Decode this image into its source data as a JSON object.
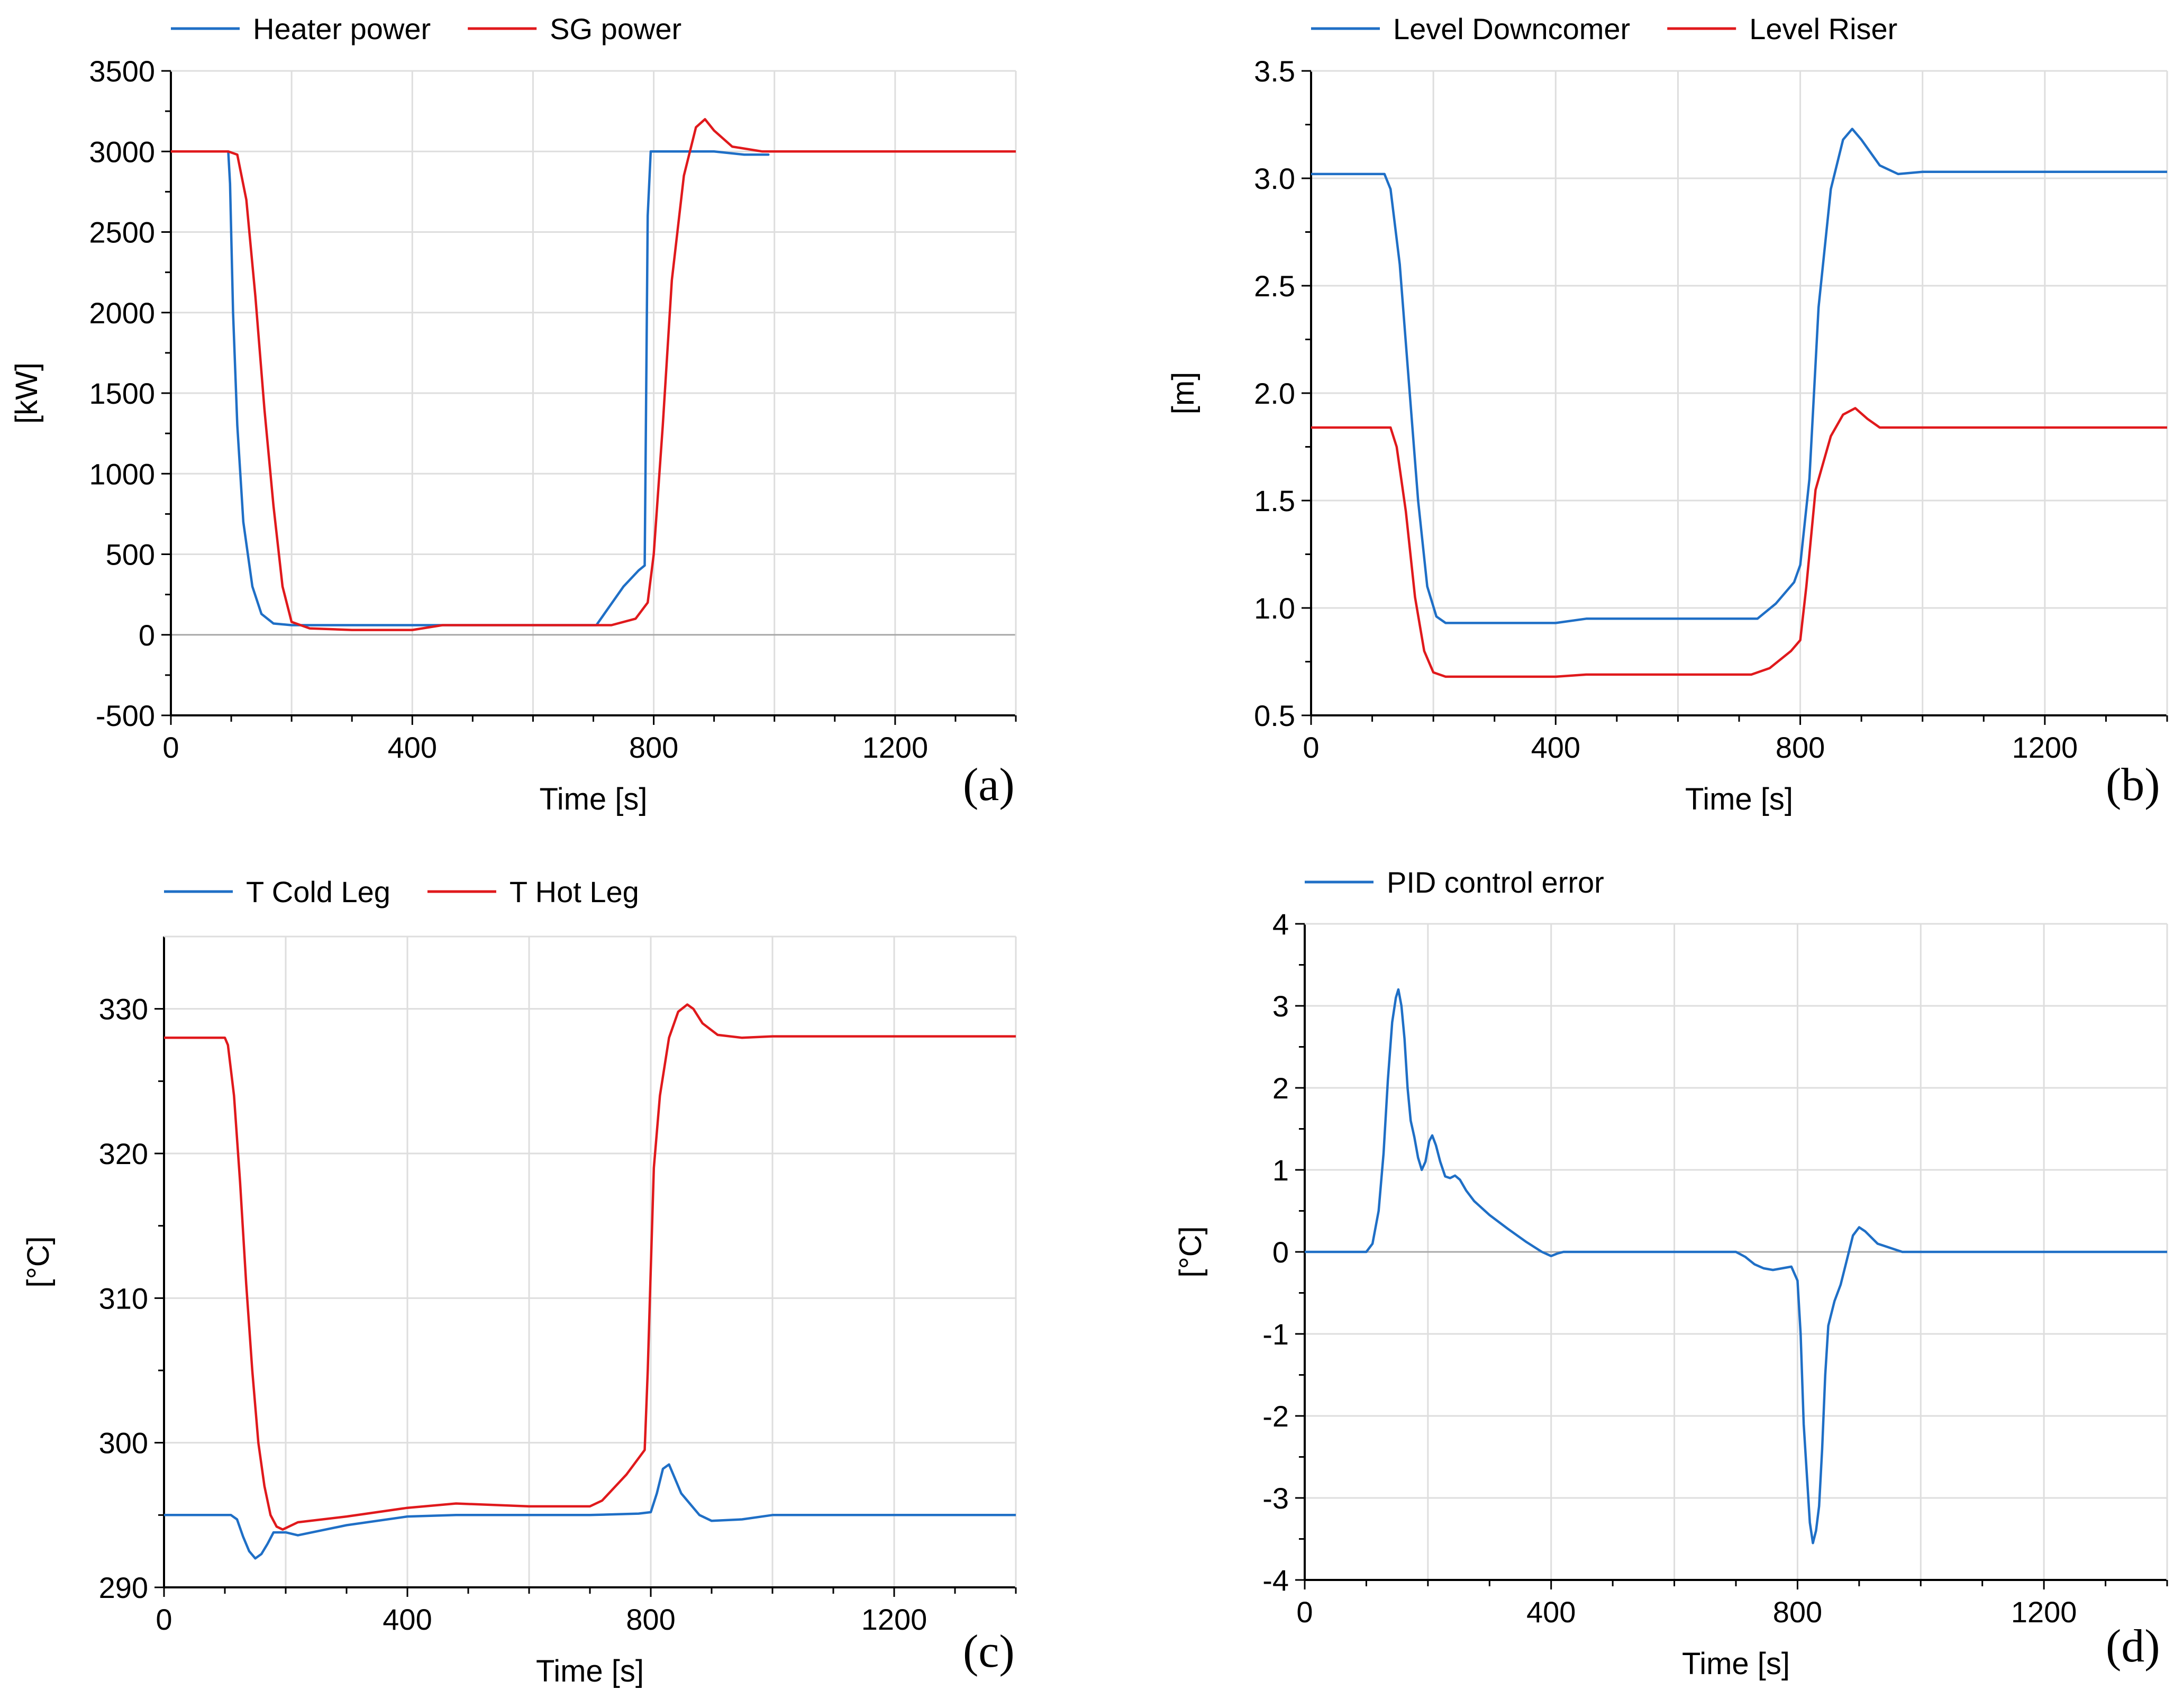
{
  "chart_data": [
    {
      "id": "a",
      "type": "line",
      "panel_label": "(a)",
      "xlabel": "Time [s]",
      "ylabel": "[kW]",
      "xlim": [
        0,
        1400
      ],
      "ylim": [
        -500,
        3500
      ],
      "xticks": [
        0,
        400,
        800,
        1200
      ],
      "xtick_labels": [
        "0",
        "400",
        "800",
        "1200"
      ],
      "yticks": [
        -500,
        0,
        500,
        1000,
        1500,
        2000,
        2500,
        3000,
        3500
      ],
      "ytick_labels": [
        "-500",
        "0",
        "500",
        "1000",
        "1500",
        "2000",
        "2500",
        "3000",
        "3500"
      ],
      "x_minor_step": 100,
      "grid": true,
      "legend": "top",
      "series": [
        {
          "name": "Heater power",
          "color": "#1f6fc6",
          "x": [
            0,
            95,
            98,
            103,
            110,
            120,
            135,
            150,
            170,
            200,
            250,
            320,
            400,
            450,
            460,
            600,
            700,
            705,
            720,
            750,
            775,
            785,
            790,
            795,
            900,
            950,
            990
          ],
          "y": [
            3000,
            3000,
            2800,
            2000,
            1300,
            700,
            300,
            130,
            70,
            60,
            60,
            60,
            60,
            60,
            60,
            60,
            60,
            60,
            140,
            300,
            400,
            430,
            2600,
            3000,
            3000,
            2980,
            2980
          ]
        },
        {
          "name": "SG power",
          "color": "#e0191c",
          "x": [
            0,
            95,
            110,
            125,
            140,
            155,
            170,
            185,
            200,
            230,
            300,
            400,
            450,
            700,
            730,
            770,
            790,
            800,
            815,
            830,
            850,
            870,
            885,
            900,
            930,
            980,
            1400
          ],
          "y": [
            3000,
            3000,
            2980,
            2700,
            2100,
            1400,
            800,
            300,
            80,
            40,
            30,
            30,
            60,
            60,
            60,
            100,
            200,
            500,
            1300,
            2200,
            2850,
            3150,
            3200,
            3130,
            3030,
            3000,
            3000
          ]
        }
      ]
    },
    {
      "id": "b",
      "type": "line",
      "panel_label": "(b)",
      "xlabel": "Time [s]",
      "ylabel": "[m]",
      "xlim": [
        0,
        1400
      ],
      "ylim": [
        0.5,
        3.5
      ],
      "xticks": [
        0,
        400,
        800,
        1200
      ],
      "xtick_labels": [
        "0",
        "400",
        "800",
        "1200"
      ],
      "yticks": [
        0.5,
        1.0,
        1.5,
        2.0,
        2.5,
        3.0,
        3.5
      ],
      "ytick_labels": [
        "0.5",
        "1.0",
        "1.5",
        "2.0",
        "2.5",
        "3.0",
        "3.5"
      ],
      "x_minor_step": 100,
      "grid": true,
      "legend": "top",
      "series": [
        {
          "name": "Level Downcomer",
          "color": "#1f6fc6",
          "x": [
            0,
            120,
            130,
            145,
            160,
            175,
            190,
            205,
            220,
            300,
            400,
            450,
            600,
            730,
            760,
            790,
            800,
            815,
            830,
            850,
            870,
            885,
            900,
            930,
            960,
            1000,
            1400
          ],
          "y": [
            3.02,
            3.02,
            2.95,
            2.6,
            2.05,
            1.5,
            1.1,
            0.96,
            0.93,
            0.93,
            0.93,
            0.95,
            0.95,
            0.95,
            1.02,
            1.12,
            1.2,
            1.6,
            2.4,
            2.95,
            3.18,
            3.23,
            3.18,
            3.06,
            3.02,
            3.03,
            3.03
          ]
        },
        {
          "name": "Level Riser",
          "color": "#e0191c",
          "x": [
            0,
            130,
            140,
            155,
            170,
            185,
            200,
            220,
            300,
            400,
            450,
            600,
            720,
            750,
            785,
            800,
            810,
            825,
            850,
            870,
            890,
            910,
            930,
            1000,
            1400
          ],
          "y": [
            1.84,
            1.84,
            1.75,
            1.45,
            1.05,
            0.8,
            0.7,
            0.68,
            0.68,
            0.68,
            0.69,
            0.69,
            0.69,
            0.72,
            0.8,
            0.85,
            1.1,
            1.55,
            1.8,
            1.9,
            1.93,
            1.88,
            1.84,
            1.84,
            1.84
          ]
        }
      ]
    },
    {
      "id": "c",
      "type": "line",
      "panel_label": "(c)",
      "xlabel": "Time [s]",
      "ylabel": "[°C]",
      "xlim": [
        0,
        1400
      ],
      "ylim": [
        290,
        335
      ],
      "xticks": [
        0,
        400,
        800,
        1200
      ],
      "xtick_labels": [
        "0",
        "400",
        "800",
        "1200"
      ],
      "yticks": [
        290,
        300,
        310,
        320,
        330
      ],
      "ytick_labels": [
        "290",
        "300",
        "310",
        "320",
        "330"
      ],
      "x_minor_step": 100,
      "grid": true,
      "legend": "top",
      "series": [
        {
          "name": "T Cold Leg",
          "color": "#1f6fc6",
          "x": [
            0,
            110,
            120,
            130,
            140,
            150,
            160,
            170,
            180,
            200,
            220,
            300,
            400,
            480,
            600,
            700,
            780,
            800,
            810,
            820,
            830,
            840,
            850,
            860,
            870,
            880,
            900,
            950,
            1000,
            1400
          ],
          "y": [
            295,
            295,
            294.7,
            293.5,
            292.5,
            292,
            292.3,
            293,
            293.8,
            293.8,
            293.6,
            294.3,
            294.9,
            295,
            295,
            295,
            295.1,
            295.2,
            296.5,
            298.2,
            298.5,
            297.5,
            296.5,
            296,
            295.5,
            295,
            294.6,
            294.7,
            295,
            295
          ]
        },
        {
          "name": "T Hot Leg",
          "color": "#e0191c",
          "x": [
            0,
            100,
            105,
            115,
            125,
            135,
            145,
            155,
            165,
            175,
            185,
            195,
            220,
            300,
            400,
            480,
            600,
            700,
            720,
            760,
            790,
            795,
            800,
            805,
            815,
            830,
            845,
            860,
            870,
            885,
            910,
            950,
            1000,
            1400
          ],
          "y": [
            328,
            328,
            327.5,
            324,
            318,
            311,
            305,
            300,
            297,
            295,
            294.2,
            294,
            294.5,
            294.9,
            295.5,
            295.8,
            295.6,
            295.6,
            296,
            297.8,
            299.5,
            305,
            312,
            319,
            324,
            328,
            329.8,
            330.3,
            330,
            329,
            328.2,
            328,
            328.1,
            328.1
          ]
        }
      ]
    },
    {
      "id": "d",
      "type": "line",
      "panel_label": "(d)",
      "xlabel": "Time [s]",
      "ylabel": "[°C]",
      "xlim": [
        0,
        1400
      ],
      "ylim": [
        -4,
        4
      ],
      "xticks": [
        0,
        400,
        800,
        1200
      ],
      "xtick_labels": [
        "0",
        "400",
        "800",
        "1200"
      ],
      "yticks": [
        -4,
        -3,
        -2,
        -1,
        0,
        1,
        2,
        3,
        4
      ],
      "ytick_labels": [
        "-4",
        "-3",
        "-2",
        "-1",
        "0",
        "1",
        "2",
        "3",
        "4"
      ],
      "x_minor_step": 100,
      "grid": true,
      "legend": "top",
      "series": [
        {
          "name": "PID control error",
          "color": "#1f6fc6",
          "x": [
            0,
            100,
            110,
            120,
            128,
            135,
            142,
            148,
            152,
            157,
            162,
            167,
            172,
            178,
            184,
            190,
            196,
            202,
            207,
            213,
            220,
            228,
            236,
            244,
            252,
            262,
            275,
            300,
            330,
            360,
            385,
            400,
            410,
            420,
            440,
            460,
            600,
            700,
            715,
            730,
            745,
            760,
            775,
            790,
            800,
            805,
            810,
            815,
            820,
            825,
            830,
            835,
            840,
            845,
            850,
            860,
            870,
            880,
            890,
            900,
            910,
            930,
            950,
            970,
            1000,
            1400
          ],
          "y": [
            0,
            0,
            0.1,
            0.5,
            1.2,
            2.1,
            2.8,
            3.1,
            3.2,
            3.0,
            2.6,
            2.0,
            1.6,
            1.4,
            1.15,
            1.0,
            1.1,
            1.35,
            1.42,
            1.3,
            1.1,
            0.92,
            0.9,
            0.93,
            0.88,
            0.75,
            0.62,
            0.45,
            0.28,
            0.12,
            0.0,
            -0.05,
            -0.02,
            0.0,
            0.0,
            0.0,
            0.0,
            0.0,
            -0.06,
            -0.15,
            -0.2,
            -0.22,
            -0.2,
            -0.18,
            -0.35,
            -1.0,
            -2.1,
            -2.7,
            -3.3,
            -3.55,
            -3.4,
            -3.1,
            -2.4,
            -1.5,
            -0.9,
            -0.6,
            -0.4,
            -0.1,
            0.2,
            0.3,
            0.25,
            0.1,
            0.05,
            0.0,
            0.0,
            0.0
          ]
        }
      ]
    }
  ]
}
